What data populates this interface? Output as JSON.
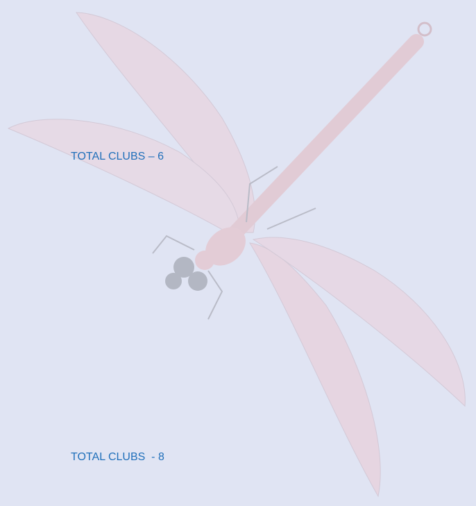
{
  "items": [
    {
      "text": "TOTAL CLUBS – 6"
    },
    {
      "text": "TOTAL CLUBS  - 8"
    }
  ]
}
